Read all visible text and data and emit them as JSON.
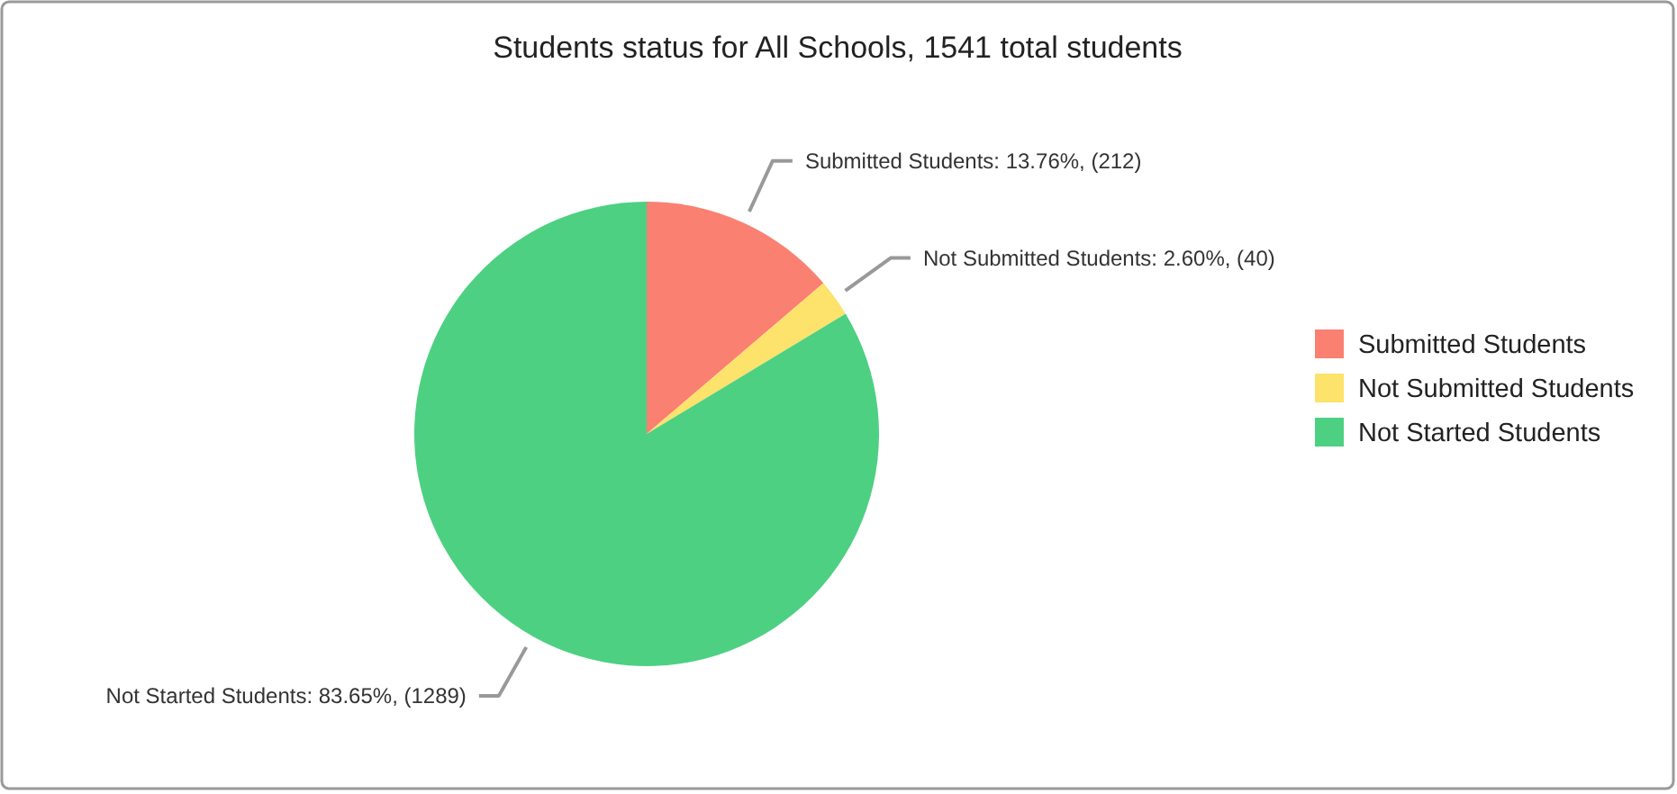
{
  "chart_data": {
    "type": "pie",
    "title": "Students status for All Schools, 1541 total students",
    "categories": [
      "Submitted Students",
      "Not Submitted Students",
      "Not Started Students"
    ],
    "values": [
      212,
      40,
      1289
    ],
    "colors": [
      "#fa8072",
      "#fde26b",
      "#4dd082"
    ],
    "value_labels": [
      "Submitted Students: 13.76%, (212)",
      "Not Submitted Students: 2.60%, (40)",
      "Not Started Students: 83.65%, (1289)"
    ],
    "legend": "right"
  }
}
